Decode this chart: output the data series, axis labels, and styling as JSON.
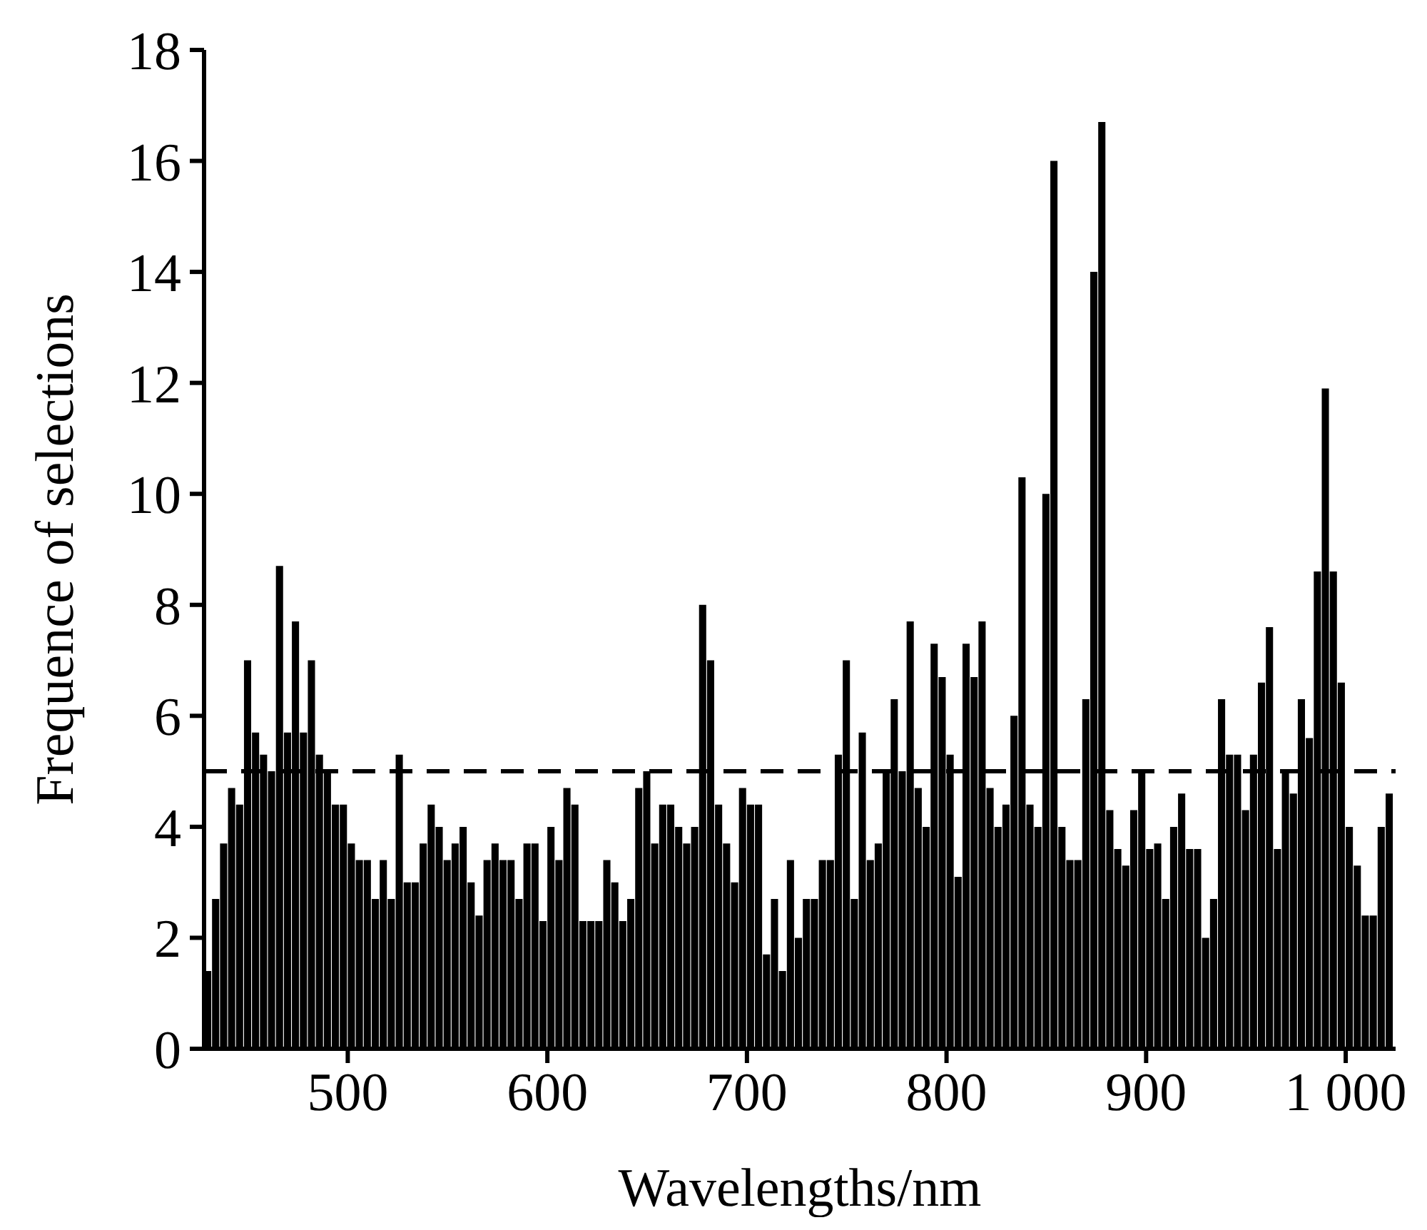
{
  "chart_data": {
    "type": "bar",
    "xlabel": "Wavelengths/nm",
    "ylabel": "Frequence of selections",
    "color": "#000000",
    "x": [
      430,
      434,
      438,
      442,
      446,
      450,
      454,
      458,
      462,
      466,
      470,
      474,
      478,
      482,
      486,
      490,
      494,
      498,
      502,
      506,
      510,
      514,
      518,
      522,
      526,
      530,
      534,
      538,
      542,
      546,
      550,
      554,
      558,
      562,
      566,
      570,
      574,
      578,
      582,
      586,
      590,
      594,
      598,
      602,
      606,
      610,
      614,
      618,
      622,
      626,
      630,
      634,
      638,
      642,
      646,
      650,
      654,
      658,
      662,
      666,
      670,
      674,
      678,
      682,
      686,
      690,
      694,
      698,
      702,
      706,
      710,
      714,
      718,
      722,
      726,
      730,
      734,
      738,
      742,
      746,
      750,
      754,
      758,
      762,
      766,
      770,
      774,
      778,
      782,
      786,
      790,
      794,
      798,
      802,
      806,
      810,
      814,
      818,
      822,
      826,
      830,
      834,
      838,
      842,
      846,
      850,
      854,
      858,
      862,
      866,
      870,
      874,
      878,
      882,
      886,
      890,
      894,
      898,
      902,
      906,
      910,
      914,
      918,
      922,
      926,
      930,
      934,
      938,
      942,
      946,
      950,
      954,
      958,
      962,
      966,
      970,
      974,
      978,
      982,
      986,
      990,
      994,
      998,
      1002,
      1006,
      1010,
      1014,
      1018,
      1022
    ],
    "values": [
      1.4,
      2.7,
      3.7,
      4.7,
      4.4,
      7.0,
      5.7,
      5.3,
      5.0,
      8.7,
      5.7,
      7.7,
      5.7,
      7.0,
      5.3,
      5.0,
      4.4,
      4.4,
      3.7,
      3.4,
      3.4,
      2.7,
      3.4,
      2.7,
      5.3,
      3.0,
      3.0,
      3.7,
      4.4,
      4.0,
      3.4,
      3.7,
      4.0,
      3.0,
      2.4,
      3.4,
      3.7,
      3.4,
      3.4,
      2.7,
      3.7,
      3.7,
      2.3,
      4.0,
      3.4,
      4.7,
      4.4,
      2.3,
      2.3,
      2.3,
      3.4,
      3.0,
      2.3,
      2.7,
      4.7,
      5.0,
      3.7,
      4.4,
      4.4,
      4.0,
      3.7,
      4.0,
      8.0,
      7.0,
      4.4,
      3.7,
      3.0,
      4.7,
      4.4,
      4.4,
      1.7,
      2.7,
      1.4,
      3.4,
      2.0,
      2.7,
      2.7,
      3.4,
      3.4,
      5.3,
      7.0,
      2.7,
      5.7,
      3.4,
      3.7,
      5.0,
      6.3,
      5.0,
      7.7,
      4.7,
      4.0,
      7.3,
      6.7,
      5.3,
      3.1,
      7.3,
      6.7,
      7.7,
      4.7,
      4.0,
      4.4,
      6.0,
      10.3,
      4.4,
      4.0,
      10.0,
      16.0,
      4.0,
      3.4,
      3.4,
      6.3,
      14.0,
      16.7,
      4.3,
      3.6,
      3.3,
      4.3,
      5.0,
      3.6,
      3.7,
      2.7,
      4.0,
      4.6,
      3.6,
      3.6,
      2.0,
      2.7,
      6.3,
      5.3,
      5.3,
      4.3,
      5.3,
      6.6,
      7.6,
      3.6,
      5.0,
      4.6,
      6.3,
      5.6,
      8.6,
      11.9,
      8.6,
      6.6,
      4.0,
      3.3,
      2.4,
      2.4,
      4.0,
      4.6
    ],
    "xlim": [
      428,
      1025
    ],
    "xticks": [
      500,
      600,
      700,
      800,
      900,
      {
        "value": 1000,
        "label": "1 000"
      }
    ],
    "ylim": [
      0,
      18
    ],
    "yticks": [
      0,
      2,
      4,
      6,
      8,
      10,
      12,
      14,
      16,
      18
    ],
    "ref_lines": [
      {
        "axis": "y",
        "value": 5,
        "line_style": "dashed",
        "color": "#000000"
      }
    ]
  }
}
